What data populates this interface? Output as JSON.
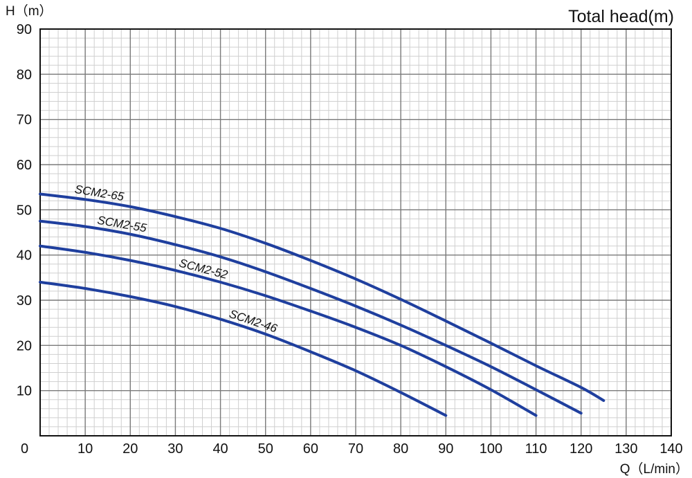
{
  "chart_data": {
    "type": "line",
    "title": "Total head(m)",
    "ylabel": "H（m）",
    "xlabel": "Q（L/min）",
    "xlim": [
      0,
      140
    ],
    "ylim": [
      0,
      90
    ],
    "x_major_step": 10,
    "y_major_step": 10,
    "x_minor_step": 2,
    "y_minor_step": 2,
    "grid": true,
    "x_ticks": [
      "0",
      "10",
      "20",
      "30",
      "40",
      "50",
      "60",
      "70",
      "80",
      "90",
      "100",
      "110",
      "120",
      "130",
      "140"
    ],
    "y_ticks": [
      "10",
      "20",
      "30",
      "40",
      "50",
      "60",
      "70",
      "80",
      "90"
    ],
    "line_color": "#1f3f9e",
    "series": [
      {
        "name": "SCM2-65",
        "x": [
          0,
          10,
          20,
          30,
          40,
          50,
          60,
          70,
          80,
          90,
          100,
          110,
          120,
          125
        ],
        "y": [
          53.5,
          52.3,
          50.7,
          48.5,
          45.9,
          42.6,
          38.8,
          34.7,
          30.2,
          25.4,
          20.5,
          15.5,
          10.7,
          7.8
        ]
      },
      {
        "name": "SCM2-55",
        "x": [
          0,
          10,
          20,
          30,
          40,
          50,
          60,
          70,
          80,
          90,
          100,
          110,
          120
        ],
        "y": [
          47.5,
          46.3,
          44.6,
          42.3,
          39.6,
          36.3,
          32.6,
          28.7,
          24.5,
          20.0,
          15.3,
          10.2,
          5.0
        ]
      },
      {
        "name": "SCM2-52",
        "x": [
          0,
          10,
          20,
          30,
          40,
          50,
          60,
          70,
          80,
          90,
          100,
          110
        ],
        "y": [
          42.0,
          40.6,
          38.8,
          36.6,
          34.0,
          31.0,
          27.6,
          24.0,
          20.0,
          15.3,
          10.2,
          4.5
        ]
      },
      {
        "name": "SCM2-46",
        "x": [
          0,
          10,
          20,
          30,
          40,
          50,
          60,
          70,
          80,
          90
        ],
        "y": [
          34.0,
          32.6,
          30.8,
          28.6,
          25.8,
          22.5,
          18.6,
          14.4,
          9.6,
          4.5
        ]
      }
    ]
  }
}
